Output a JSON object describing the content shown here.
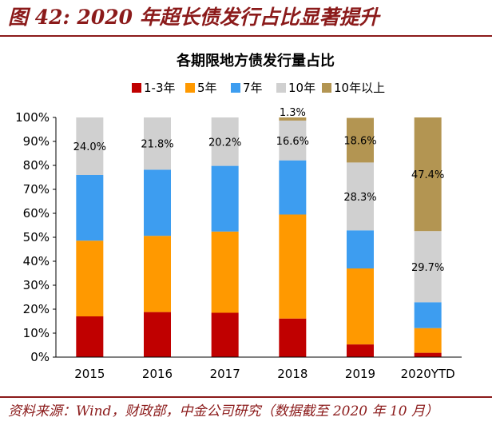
{
  "figure_title": "图 42: 2020 年超长债发行占比显著提升",
  "source_note": "资料来源：Wind，财政部，中金公司研究（数据截至 2020 年 10 月）",
  "chart_data": {
    "type": "bar",
    "stacked": true,
    "title": "各期限地方债发行量占比",
    "categories": [
      "2015",
      "2016",
      "2017",
      "2018",
      "2019",
      "2020YTD"
    ],
    "ylim": [
      0,
      100
    ],
    "yticks": [
      "0%",
      "10%",
      "20%",
      "30%",
      "40%",
      "50%",
      "60%",
      "70%",
      "80%",
      "90%",
      "100%"
    ],
    "legend_position": "top",
    "series": [
      {
        "name": "1-3年",
        "color": "#c00000",
        "values": [
          17,
          18.8,
          18.5,
          16.1,
          5.3,
          1.8
        ]
      },
      {
        "name": "5年",
        "color": "#ff9900",
        "values": [
          31.6,
          31.8,
          33.9,
          43.4,
          31.7,
          10.3
        ]
      },
      {
        "name": "7年",
        "color": "#3d9df0",
        "values": [
          27.4,
          27.6,
          27.4,
          22.6,
          15.9,
          10.8
        ]
      },
      {
        "name": "10年",
        "color": "#d0d0d0",
        "values": [
          24.0,
          21.8,
          20.2,
          16.6,
          28.3,
          29.7
        ]
      },
      {
        "name": "10年以上",
        "color": "#b39552",
        "values": [
          0,
          0,
          0,
          1.3,
          18.6,
          47.4
        ]
      }
    ],
    "data_labels": [
      {
        "category": "2015",
        "series": "10年",
        "text": "24.0%"
      },
      {
        "category": "2016",
        "series": "10年",
        "text": "21.8%"
      },
      {
        "category": "2017",
        "series": "10年",
        "text": "20.2%"
      },
      {
        "category": "2018",
        "series": "10年",
        "text": "16.6%"
      },
      {
        "category": "2018",
        "series": "10年以上",
        "text": "1.3%"
      },
      {
        "category": "2019",
        "series": "10年",
        "text": "28.3%"
      },
      {
        "category": "2019",
        "series": "10年以上",
        "text": "18.6%"
      },
      {
        "category": "2020YTD",
        "series": "10年",
        "text": "29.7%"
      },
      {
        "category": "2020YTD",
        "series": "10年以上",
        "text": "47.4%"
      }
    ]
  }
}
